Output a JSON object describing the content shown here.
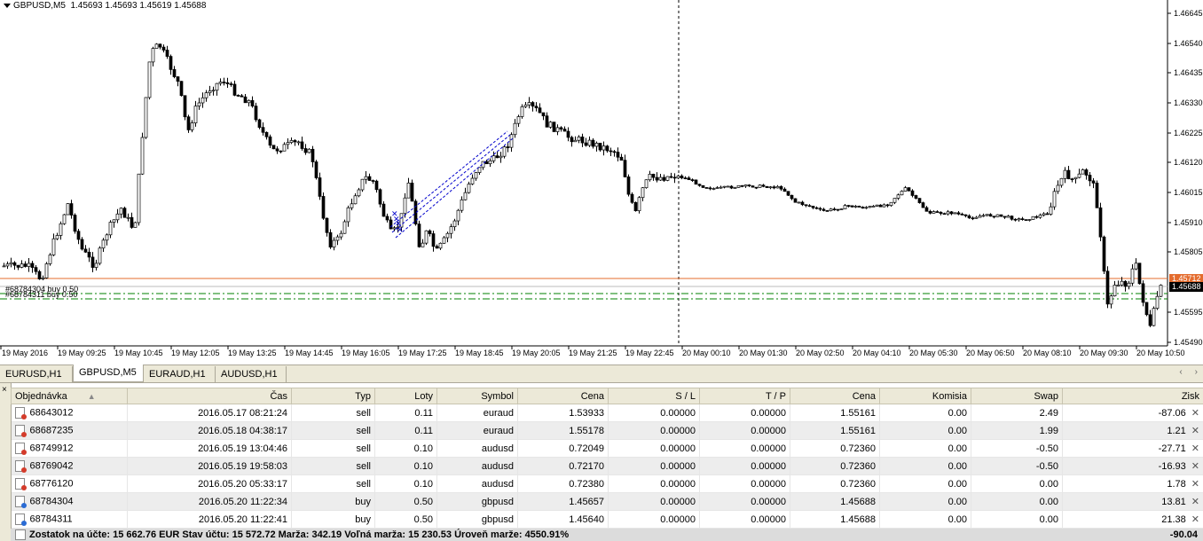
{
  "chart": {
    "symbol": "GBPUSD,M5",
    "ohlc": "1.45693 1.45693 1.45619 1.45688",
    "price_axis": [
      "1.46645",
      "1.46540",
      "1.46435",
      "1.46330",
      "1.46225",
      "1.46120",
      "1.46015",
      "1.45910",
      "1.45805",
      "1.45595",
      "1.45490"
    ],
    "price_tag_red": "1.45712",
    "price_tag_cur": "1.45688",
    "time_axis": [
      "19 May 2016",
      "19 May 09:25",
      "19 May 10:45",
      "19 May 12:05",
      "19 May 13:25",
      "19 May 14:45",
      "19 May 16:05",
      "19 May 17:25",
      "19 May 18:45",
      "19 May 20:05",
      "19 May 21:25",
      "19 May 22:45",
      "20 May 00:10",
      "20 May 01:30",
      "20 May 02:50",
      "20 May 04:10",
      "20 May 05:30",
      "20 May 06:50",
      "20 May 08:10",
      "20 May 09:30",
      "20 May 10:50"
    ],
    "trade_labels": [
      "#68784304 buy 0.50",
      "#68784311 buy 0.50"
    ],
    "colors": {
      "bid_line": "#e46c2e",
      "trade_line": "#008000",
      "trade_arrow": "#0000cc",
      "cur_price_bg": "#000000"
    }
  },
  "tabs": [
    {
      "label": "EURUSD,H1",
      "active": false
    },
    {
      "label": "GBPUSD,M5",
      "active": true
    },
    {
      "label": "EURAUD,H1",
      "active": false
    },
    {
      "label": "AUDUSD,H1",
      "active": false
    }
  ],
  "table": {
    "headers": [
      "Objednávka",
      "Čas",
      "Typ",
      "Loty",
      "Symbol",
      "Cena",
      "S / L",
      "T / P",
      "Cena",
      "Komisia",
      "Swap",
      "Zisk"
    ],
    "rows": [
      [
        "68643012",
        "2016.05.17 08:21:24",
        "sell",
        "0.11",
        "euraud",
        "1.53933",
        "0.00000",
        "0.00000",
        "1.55161",
        "0.00",
        "2.49",
        "-87.06"
      ],
      [
        "68687235",
        "2016.05.18 04:38:17",
        "sell",
        "0.11",
        "euraud",
        "1.55178",
        "0.00000",
        "0.00000",
        "1.55161",
        "0.00",
        "1.99",
        "1.21"
      ],
      [
        "68749912",
        "2016.05.19 13:04:46",
        "sell",
        "0.10",
        "audusd",
        "0.72049",
        "0.00000",
        "0.00000",
        "0.72360",
        "0.00",
        "-0.50",
        "-27.71"
      ],
      [
        "68769042",
        "2016.05.19 19:58:03",
        "sell",
        "0.10",
        "audusd",
        "0.72170",
        "0.00000",
        "0.00000",
        "0.72360",
        "0.00",
        "-0.50",
        "-16.93"
      ],
      [
        "68776120",
        "2016.05.20 05:33:17",
        "sell",
        "0.10",
        "audusd",
        "0.72380",
        "0.00000",
        "0.00000",
        "0.72360",
        "0.00",
        "0.00",
        "1.78"
      ],
      [
        "68784304",
        "2016.05.20 11:22:34",
        "buy",
        "0.50",
        "gbpusd",
        "1.45657",
        "0.00000",
        "0.00000",
        "1.45688",
        "0.00",
        "0.00",
        "13.81"
      ],
      [
        "68784311",
        "2016.05.20 11:22:41",
        "buy",
        "0.50",
        "gbpusd",
        "1.45640",
        "0.00000",
        "0.00000",
        "1.45688",
        "0.00",
        "0.00",
        "21.38"
      ]
    ],
    "summary": "Zostatok na účte: 15 662.76 EUR  Stav účtu: 15 572.72  Marža: 342.19  Voľná marža: 15 230.53  Úroveň marže: 4550.91%",
    "total": "-90.04"
  }
}
